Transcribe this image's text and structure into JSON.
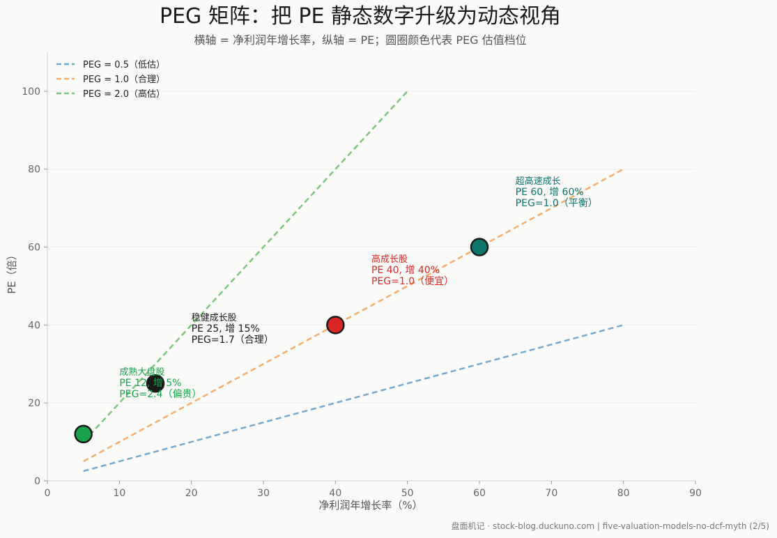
{
  "header": {
    "title": "PEG 矩阵：把 PE 静态数字升级为动态视角",
    "subtitle": "横轴 = 净利润年增长率，纵轴 = PE；圆圈颜色代表 PEG 估值档位"
  },
  "footer": {
    "text": "盘面机记 · stock-blog.duckuno.com | five-valuation-models-no-dcf-myth (2/5)"
  },
  "chart_data": {
    "type": "scatter",
    "title": "PEG 矩阵：把 PE 静态数字升级为动态视角",
    "subtitle": "横轴 = 净利润年增长率，纵轴 = PE；圆圈颜色代表 PEG 估值档位",
    "xlabel": "净利润年增长率（%）",
    "ylabel": "PE（倍）",
    "xlim": [
      0,
      90
    ],
    "ylim": [
      0,
      110
    ],
    "xticks": [
      0,
      10,
      20,
      30,
      40,
      50,
      60,
      70,
      80,
      90
    ],
    "yticks": [
      0,
      20,
      40,
      60,
      80,
      100
    ],
    "grid": "horizontal",
    "legend_position": "top-left",
    "reference_lines": [
      {
        "name": "PEG = 0.5（低估）",
        "peg": 0.5,
        "color": "#74a9cf",
        "x": [
          5,
          80
        ],
        "y": [
          2.5,
          40
        ]
      },
      {
        "name": "PEG = 1.0（合理）",
        "peg": 1.0,
        "color": "#f5ae6b",
        "x": [
          5,
          80
        ],
        "y": [
          5,
          80
        ]
      },
      {
        "name": "PEG = 2.0（高估）",
        "peg": 2.0,
        "color": "#7dc47d",
        "x": [
          5,
          50
        ],
        "y": [
          10,
          100
        ]
      }
    ],
    "points": [
      {
        "x": 5,
        "y": 12,
        "color": "#16a34a"
      },
      {
        "x": 15,
        "y": 25,
        "color": "#1a1a1a"
      },
      {
        "x": 40,
        "y": 40,
        "color": "#dc2626"
      },
      {
        "x": 60,
        "y": 60,
        "color": "#0f766e"
      }
    ],
    "annotations": [
      {
        "x": 10,
        "y": 24.5,
        "color": "#16a34a",
        "lines": [
          "成熟大盘股",
          "PE 12, 增 5%",
          "PEG=2.4（偏贵）"
        ]
      },
      {
        "x": 20,
        "y": 38.5,
        "color": "#1a1a1a",
        "lines": [
          "稳健成长股",
          "PE 25, 增 15%",
          "PEG=1.7（合理）"
        ]
      },
      {
        "x": 45,
        "y": 53.5,
        "color": "#dc2626",
        "lines": [
          "高成长股",
          "PE 40, 增 40%",
          "PEG=1.0（便宜）"
        ]
      },
      {
        "x": 65,
        "y": 73.5,
        "color": "#0f766e",
        "lines": [
          "超高速成长",
          "PE 60, 增 60%",
          "PEG=1.0（平衡）"
        ]
      }
    ]
  }
}
